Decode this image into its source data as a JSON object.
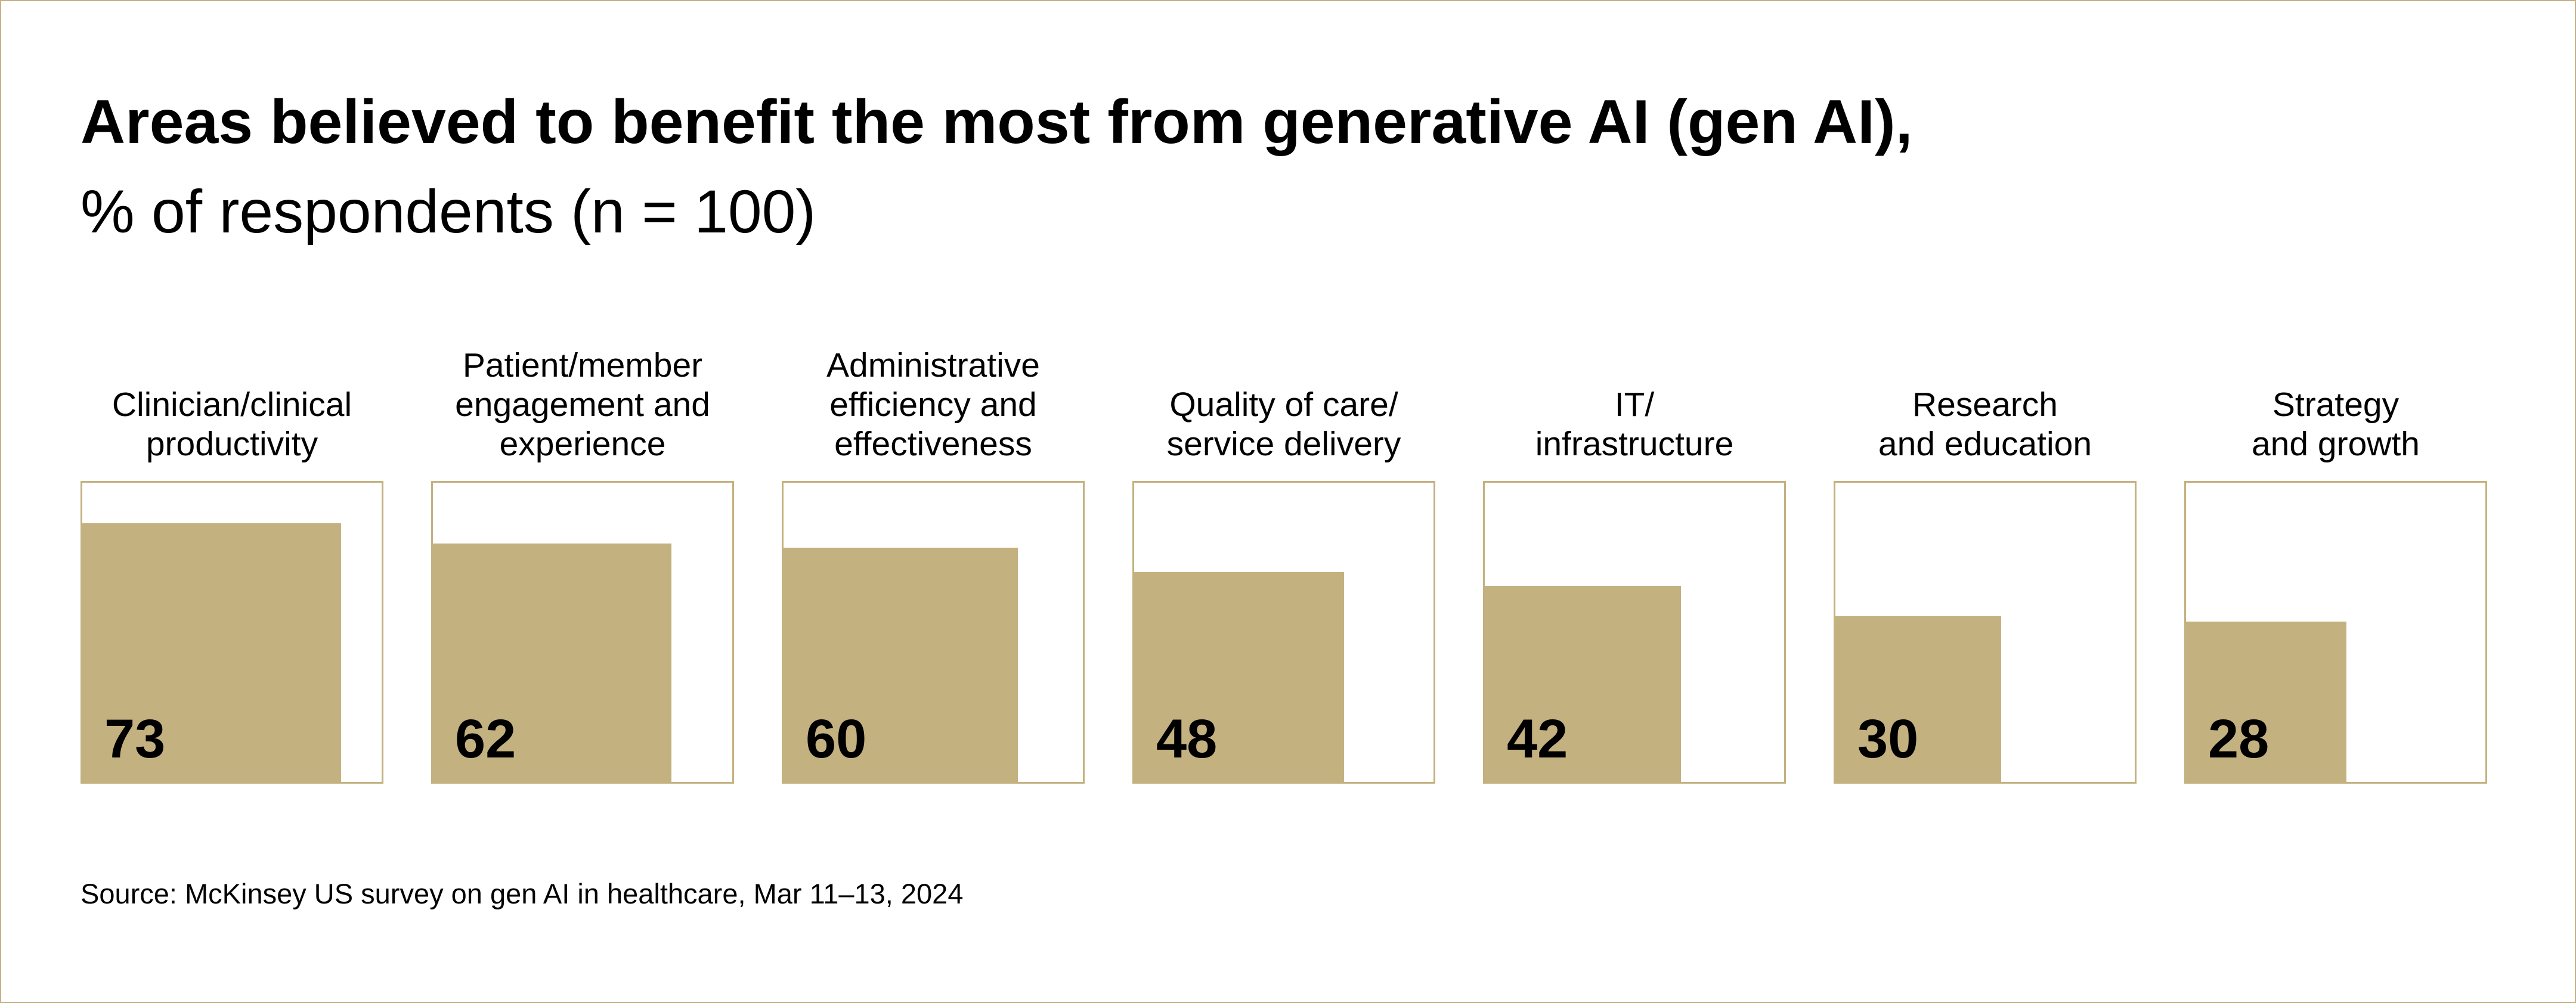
{
  "colors": {
    "accent": "#c4b180",
    "background": "#ffffff",
    "text": "#000000"
  },
  "chart_data": {
    "type": "bar",
    "title": "Areas believed to benefit the most from generative AI (gen AI),",
    "subtitle": "% of respondents (n = 100)",
    "categories": [
      "Clinician/clinical\nproductivity",
      "Patient/member\nengagement and\nexperience",
      "Administrative\nefficiency and\neffectiveness",
      "Quality of care/\nservice delivery",
      "IT/\ninfrastructure",
      "Research\nand education",
      "Strategy\nand growth"
    ],
    "values": [
      73,
      62,
      60,
      48,
      42,
      30,
      28
    ],
    "ylim": [
      0,
      100
    ],
    "unit": "%",
    "source": "Source: McKinsey US survey on gen AI in healthcare, Mar 11–13, 2024"
  }
}
